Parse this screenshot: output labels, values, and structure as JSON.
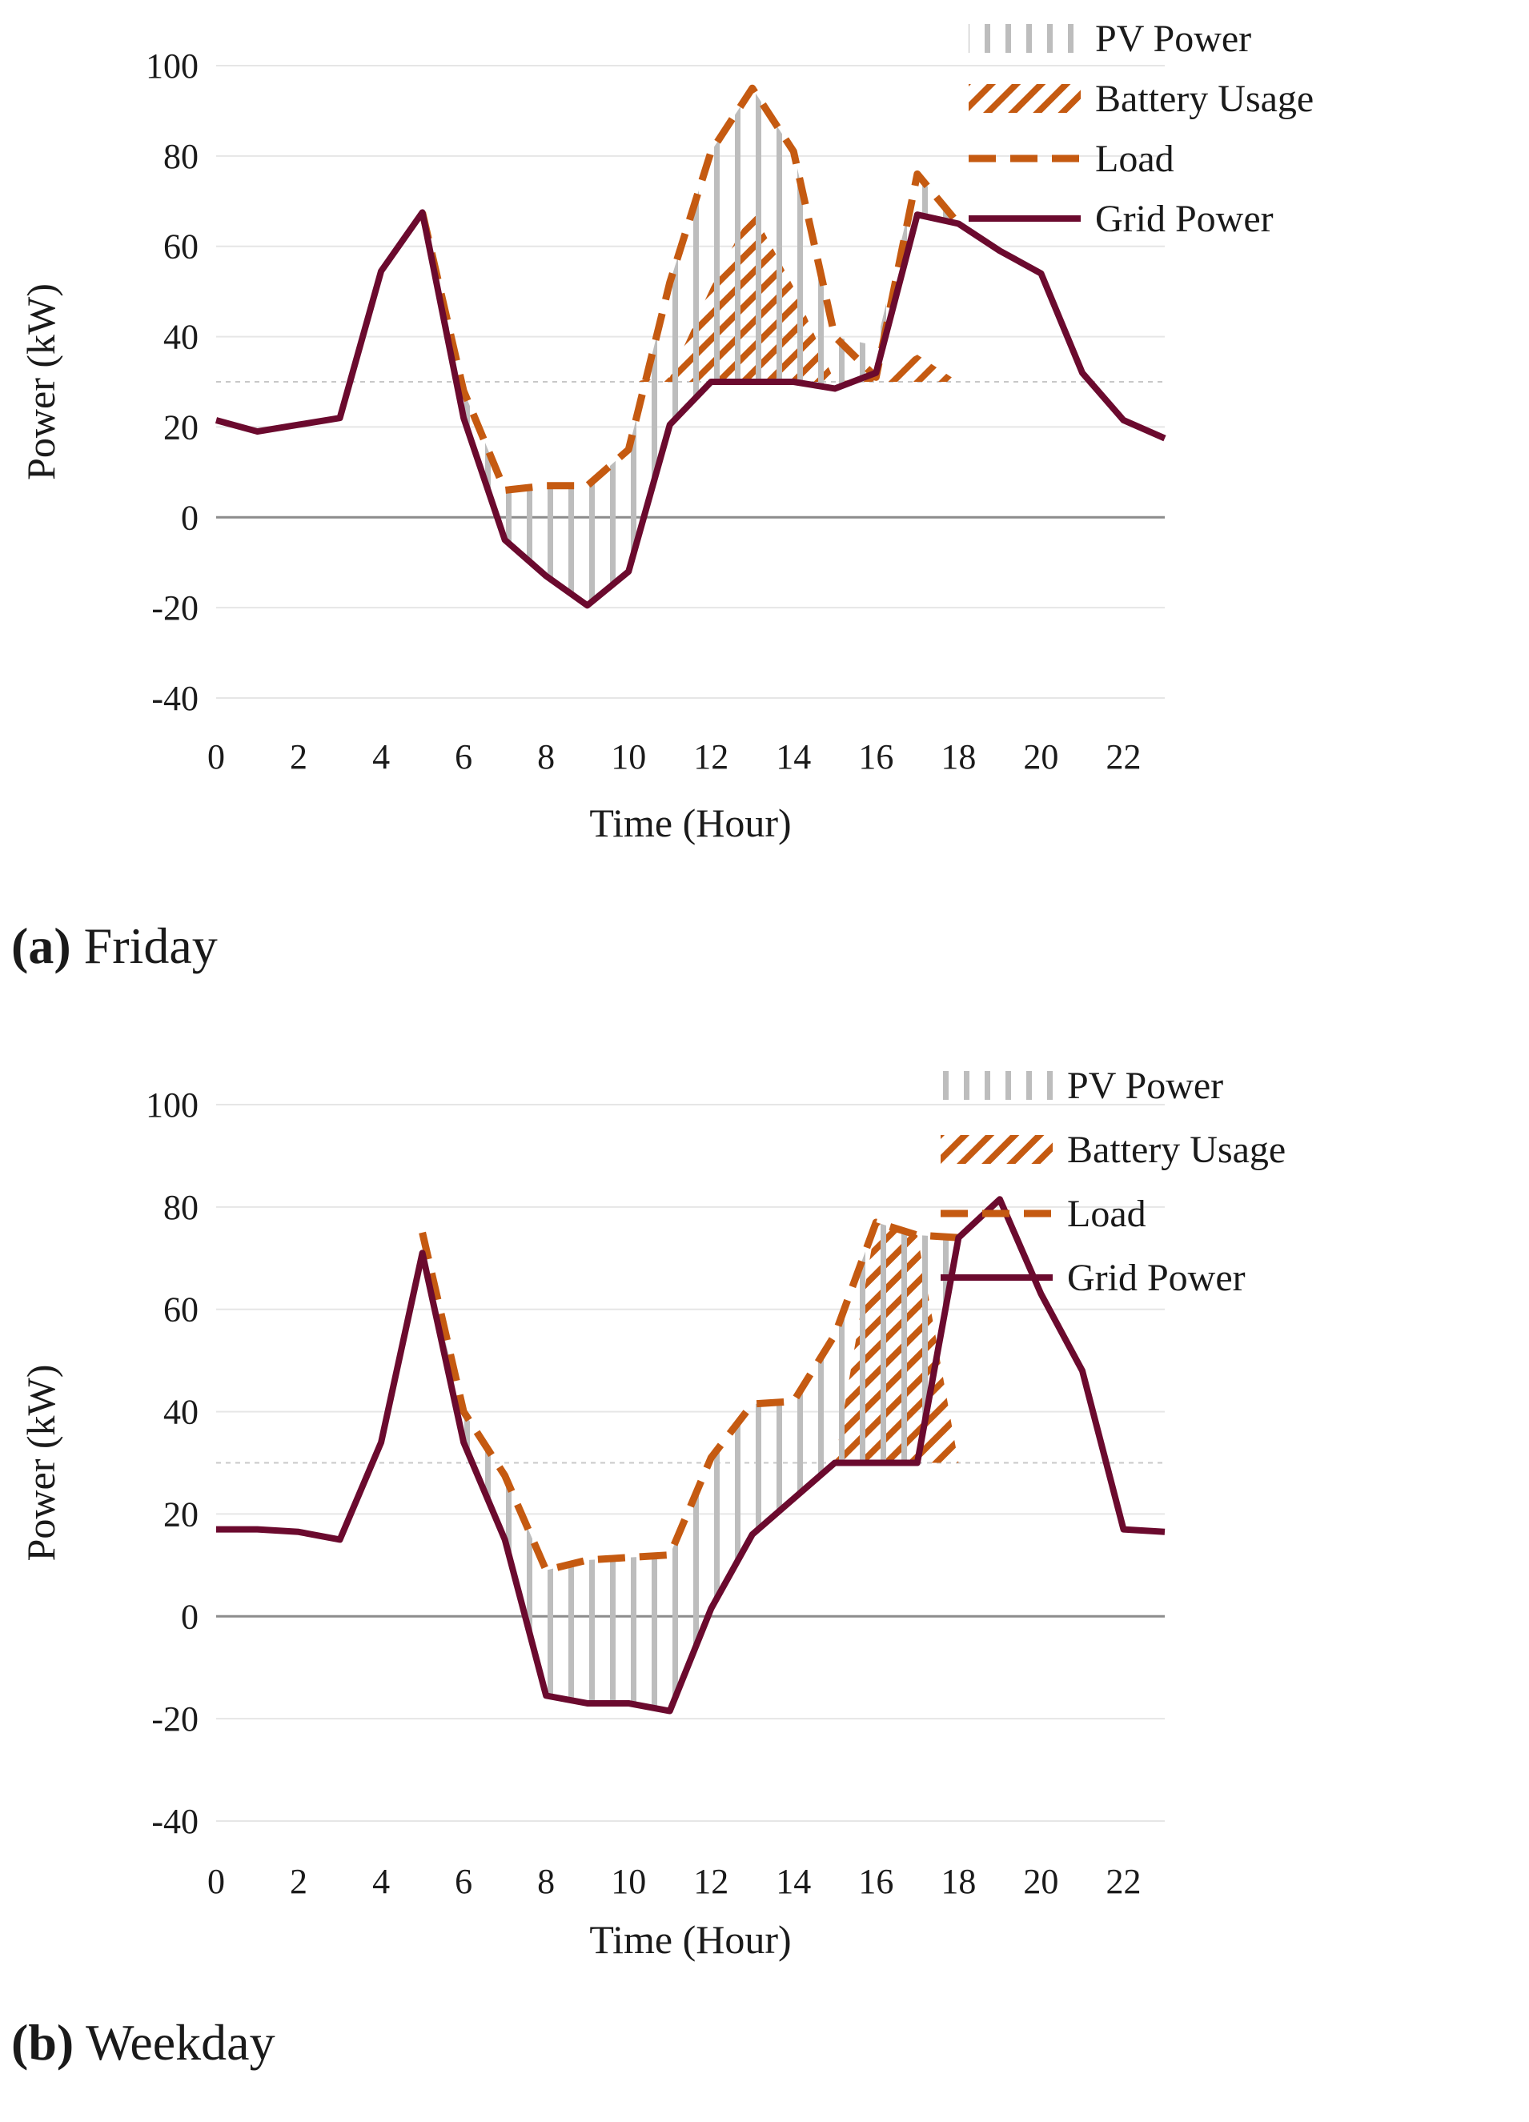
{
  "colors": {
    "pv": "#bdbdbd",
    "battery": "#c55a11",
    "load": "#c55a11",
    "grid": "#6b0a2e",
    "gridline": "#e6e6e6",
    "zero_line": "#8c8c8c",
    "threshold": "#c8c8c8"
  },
  "chart_data": [
    {
      "id": "friday",
      "type": "line",
      "caption_letter": "(a)",
      "caption_text": "Friday",
      "xlabel": "Time (Hour)",
      "ylabel": "Power (kW)",
      "xlim": [
        0,
        23
      ],
      "ylim": [
        -40,
        100
      ],
      "xticks": [
        "0",
        "2",
        "4",
        "6",
        "8",
        "10",
        "12",
        "14",
        "16",
        "18",
        "20",
        "22"
      ],
      "yticks": [
        "100",
        "80",
        "60",
        "40",
        "20",
        "0",
        "-20",
        "-40"
      ],
      "threshold": 30,
      "legend": [
        "PV Power",
        "Battery Usage",
        "Load",
        "Grid Power"
      ],
      "x": [
        0,
        1,
        2,
        3,
        4,
        5,
        6,
        7,
        8,
        9,
        10,
        11,
        12,
        13,
        14,
        15,
        16,
        17,
        18,
        19,
        20,
        21,
        22,
        23
      ],
      "series": [
        {
          "name": "Grid Power",
          "values": [
            21.5,
            19,
            20.5,
            22,
            54.5,
            67.5,
            22,
            -5,
            -13,
            -19.5,
            -12,
            20.5,
            30,
            30,
            30,
            28.5,
            32,
            67,
            65,
            59,
            54,
            32,
            21.5,
            17.5
          ]
        },
        {
          "name": "Load",
          "values": [
            null,
            null,
            null,
            null,
            null,
            67.5,
            28,
            6,
            7,
            7,
            15,
            52,
            81,
            95,
            81,
            40,
            31,
            76,
            65,
            null,
            null,
            null,
            null,
            null
          ]
        },
        {
          "name": "PV Power",
          "values": [
            0,
            0,
            0,
            0,
            0,
            0,
            6,
            11,
            20,
            26.5,
            27,
            31.5,
            51,
            65,
            51,
            11.5,
            6,
            9,
            0,
            0,
            0,
            0,
            0,
            0
          ]
        },
        {
          "name": "Battery Usage",
          "values": [
            0,
            0,
            0,
            0,
            0,
            0,
            0,
            0,
            0,
            0,
            0,
            1,
            21,
            38,
            21,
            0,
            1,
            6,
            0,
            0,
            0,
            0,
            0,
            0
          ]
        }
      ]
    },
    {
      "id": "weekday",
      "type": "line",
      "caption_letter": "(b)",
      "caption_text": "Weekday",
      "xlabel": "Time (Hour)",
      "ylabel": "Power (kW)",
      "xlim": [
        0,
        23
      ],
      "ylim": [
        -40,
        100
      ],
      "xticks": [
        "0",
        "2",
        "4",
        "6",
        "8",
        "10",
        "12",
        "14",
        "16",
        "18",
        "20",
        "22"
      ],
      "yticks": [
        "100",
        "80",
        "60",
        "40",
        "20",
        "0",
        "-20",
        "-40"
      ],
      "threshold": 30,
      "legend": [
        "PV Power",
        "Battery Usage",
        "Load",
        "Grid Power"
      ],
      "x": [
        0,
        1,
        2,
        3,
        4,
        5,
        6,
        7,
        8,
        9,
        10,
        11,
        12,
        13,
        14,
        15,
        16,
        17,
        18,
        19,
        20,
        21,
        22,
        23
      ],
      "series": [
        {
          "name": "Grid Power",
          "values": [
            17,
            17,
            16.5,
            15,
            34,
            71,
            34,
            15,
            -15.5,
            -17,
            -17,
            -18.5,
            1.5,
            16,
            23,
            30,
            30,
            30,
            74,
            81.5,
            63,
            48,
            17,
            16.5
          ]
        },
        {
          "name": "Load",
          "values": [
            null,
            null,
            null,
            null,
            null,
            75,
            40,
            27.5,
            9,
            11,
            11.5,
            12,
            31,
            41.5,
            42,
            55,
            77,
            74.5,
            74,
            null,
            null,
            null,
            null,
            null
          ]
        },
        {
          "name": "PV Power",
          "values": [
            0,
            0,
            0,
            0,
            0,
            0,
            6,
            12.5,
            24.5,
            28,
            28.5,
            30.5,
            29.5,
            25.5,
            19,
            25,
            47,
            44.5,
            0,
            0,
            0,
            0,
            0,
            0
          ]
        },
        {
          "name": "Battery Usage",
          "values": [
            0,
            0,
            0,
            0,
            0,
            0,
            0,
            0,
            0,
            0,
            0,
            0,
            0,
            0,
            0,
            0,
            47,
            44.5,
            0,
            0,
            0,
            0,
            0,
            0
          ]
        }
      ]
    }
  ]
}
